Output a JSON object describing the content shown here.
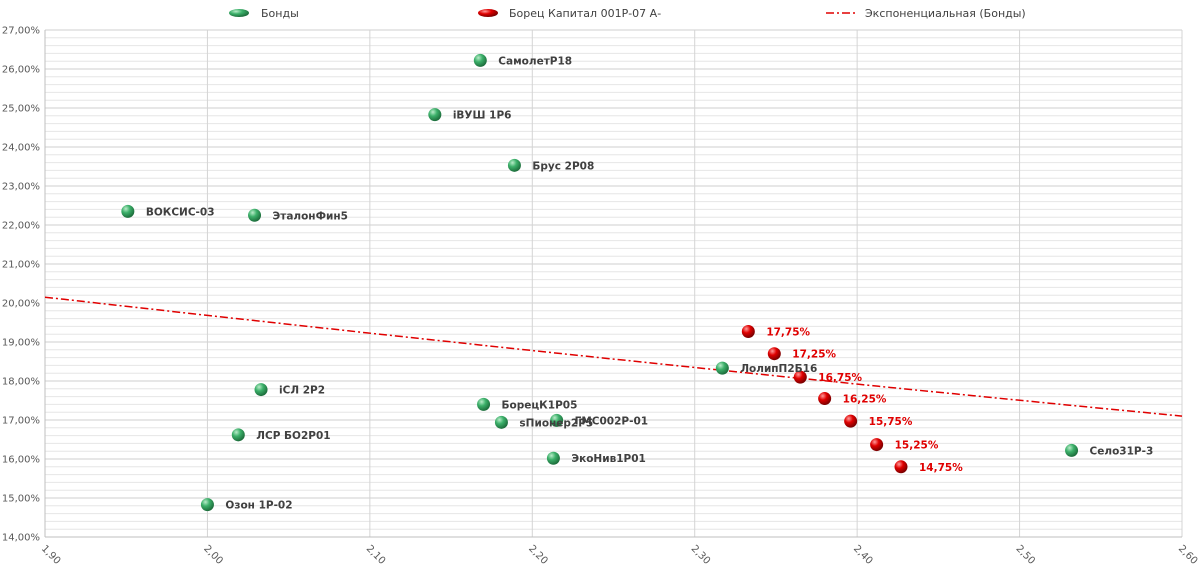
{
  "legend": {
    "series1": "Бонды",
    "series2": "Борец Капитал 001Р-07 А-",
    "trend": "Экспоненциальная (Бонды)"
  },
  "colors": {
    "green": "#3cb06a",
    "red": "#e00000",
    "trend": "#e00000",
    "grid_major": "#d4d4d4",
    "grid_minor": "#e6e6e6"
  },
  "chart_data": {
    "type": "scatter",
    "xlim": [
      1.9,
      2.6
    ],
    "ylim": [
      14.0,
      27.0
    ],
    "grid": true,
    "legend_position": "top",
    "x_ticks": [
      "1,90",
      "2,00",
      "2,10",
      "2,20",
      "2,30",
      "2,40",
      "2,50",
      "2,60"
    ],
    "y_ticks": [
      "14,00%",
      "15,00%",
      "16,00%",
      "17,00%",
      "18,00%",
      "19,00%",
      "20,00%",
      "21,00%",
      "22,00%",
      "23,00%",
      "24,00%",
      "25,00%",
      "26,00%",
      "27,00%"
    ],
    "series": [
      {
        "name": "Бонды",
        "points": [
          {
            "label": "ВОКСИС-03",
            "x": 1.951,
            "y": 22.35
          },
          {
            "label": "ЭталонФин5",
            "x": 2.029,
            "y": 22.25
          },
          {
            "label": "СамолетР18",
            "x": 2.168,
            "y": 26.22
          },
          {
            "label": "iВУШ 1Р6",
            "x": 2.14,
            "y": 24.83
          },
          {
            "label": "Брус 2Р08",
            "x": 2.189,
            "y": 23.53
          },
          {
            "label": "iСЛ 2Р2",
            "x": 2.033,
            "y": 17.78
          },
          {
            "label": "ЛСР БО2Р01",
            "x": 2.019,
            "y": 16.62
          },
          {
            "label": "Озон 1Р-02",
            "x": 2.0,
            "y": 14.83
          },
          {
            "label": "БорецК1Р05",
            "x": 2.17,
            "y": 17.4
          },
          {
            "label": "sПионер2Р5",
            "x": 2.181,
            "y": 16.94
          },
          {
            "label": "ГМС002Р-01",
            "x": 2.215,
            "y": 16.99
          },
          {
            "label": "ЭкоНив1Р01",
            "x": 2.213,
            "y": 16.02
          },
          {
            "label": "ЛолипП2Б16",
            "x": 2.317,
            "y": 18.33
          },
          {
            "label": "Село31Р-3",
            "x": 2.532,
            "y": 16.22
          }
        ]
      },
      {
        "name": "Борец Капитал 001Р-07 А-",
        "points": [
          {
            "label": "17,75%",
            "x": 2.333,
            "y": 19.27
          },
          {
            "label": "17,25%",
            "x": 2.349,
            "y": 18.7
          },
          {
            "label": "16,75%",
            "x": 2.365,
            "y": 18.1
          },
          {
            "label": "16,25%",
            "x": 2.38,
            "y": 17.55
          },
          {
            "label": "15,75%",
            "x": 2.396,
            "y": 16.97
          },
          {
            "label": "15,25%",
            "x": 2.412,
            "y": 16.37
          },
          {
            "label": "14,75%",
            "x": 2.427,
            "y": 15.8
          }
        ]
      }
    ],
    "trendline": {
      "name": "Экспоненциальная (Бонды)",
      "type": "exponential",
      "x": [
        1.9,
        2.6
      ],
      "y": [
        20.15,
        17.1
      ]
    }
  }
}
